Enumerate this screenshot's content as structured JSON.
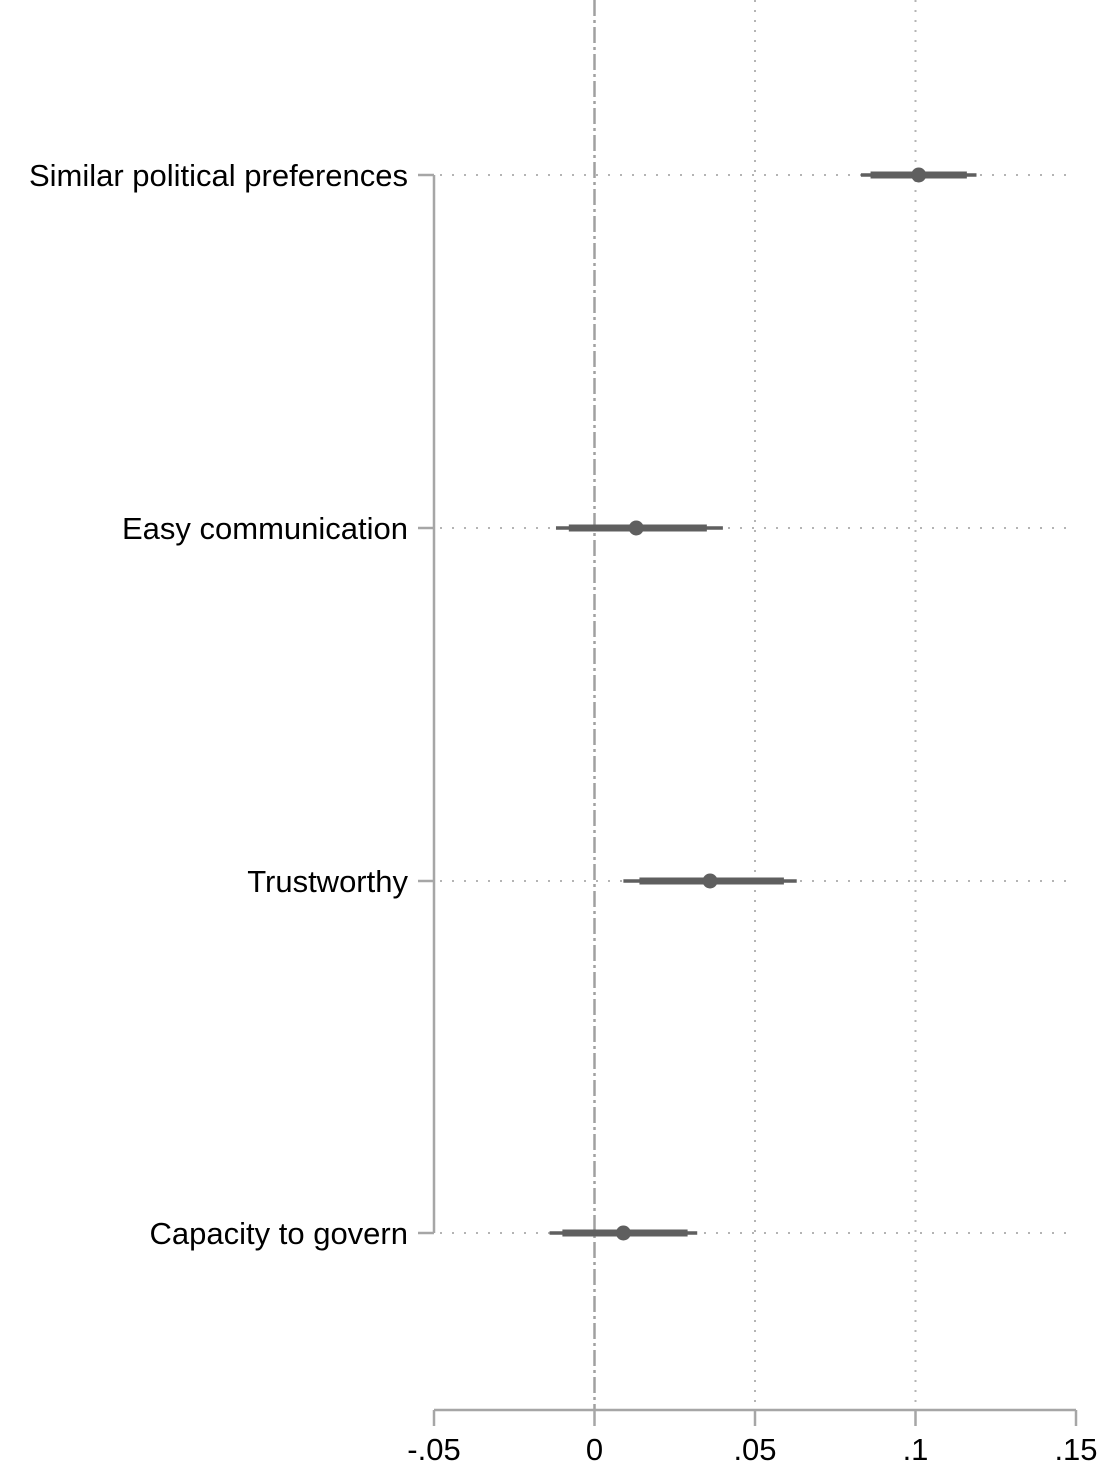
{
  "chart_data": {
    "type": "coefficient-plot",
    "title": "",
    "xlabel": "",
    "ylabel": "",
    "xlim": [
      -0.05,
      0.15
    ],
    "x_ticks": [
      -0.05,
      0,
      0.05,
      0.1,
      0.15
    ],
    "x_tick_labels": [
      "-.05",
      "0",
      ".05",
      ".1",
      ".15"
    ],
    "reference_line": {
      "x": 0,
      "style": "dash-dot"
    },
    "grid": {
      "vertical_dotted_at": [
        0.05,
        0.1
      ],
      "horizontal_dotted_at_categories": true
    },
    "categories": [
      "Similar political preferences",
      "Easy communication",
      "Trustworthy",
      "Capacity to govern"
    ],
    "series": [
      {
        "name": "estimate",
        "values": [
          0.101,
          0.013,
          0.036,
          0.009
        ],
        "ci_outer_low": [
          0.083,
          -0.012,
          0.009,
          -0.014
        ],
        "ci_outer_high": [
          0.119,
          0.04,
          0.063,
          0.032
        ],
        "ci_inner_low": [
          0.086,
          -0.008,
          0.014,
          -0.01
        ],
        "ci_inner_high": [
          0.116,
          0.035,
          0.059,
          0.029
        ]
      }
    ],
    "colors": {
      "marker": "#5f5f5f",
      "axis": "#a6a6a6",
      "grid": "#b4b4b4",
      "zero_line": "#a0a0a0"
    },
    "legend": null
  }
}
